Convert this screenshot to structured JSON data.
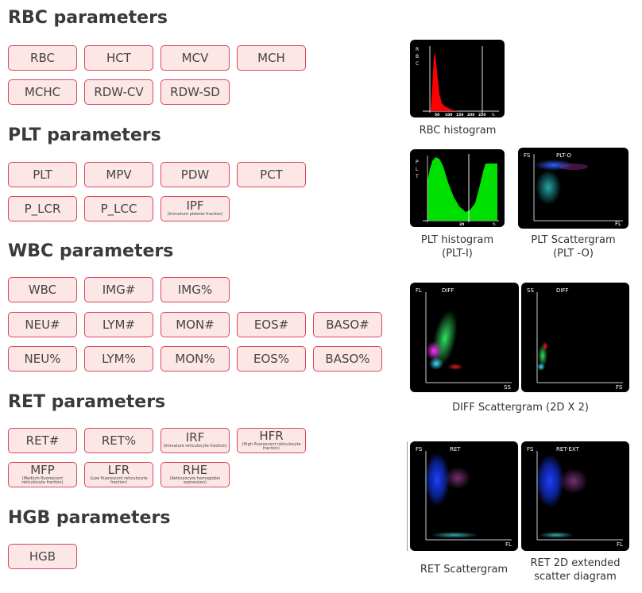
{
  "sections": {
    "rbc": {
      "title": "RBC parameters",
      "items": [
        {
          "name": "RBC"
        },
        {
          "name": "HCT"
        },
        {
          "name": "MCV"
        },
        {
          "name": "MCH"
        },
        {
          "name": "MCHC"
        },
        {
          "name": "RDW-CV"
        },
        {
          "name": "RDW-SD"
        }
      ]
    },
    "plt": {
      "title": "PLT parameters",
      "items": [
        {
          "name": "PLT"
        },
        {
          "name": "MPV"
        },
        {
          "name": "PDW"
        },
        {
          "name": "PCT"
        },
        {
          "name": "P_LCR"
        },
        {
          "name": "P_LCC"
        },
        {
          "name": "IPF",
          "sub": "(Immature platelet fraction)"
        }
      ]
    },
    "wbc": {
      "title": "WBC parameters",
      "items": [
        {
          "name": "WBC"
        },
        {
          "name": "IMG#"
        },
        {
          "name": "IMG%"
        },
        {
          "name": "NEU#"
        },
        {
          "name": "LYM#"
        },
        {
          "name": "MON#"
        },
        {
          "name": "EOS#"
        },
        {
          "name": "BASO#"
        },
        {
          "name": "NEU%"
        },
        {
          "name": "LYM%"
        },
        {
          "name": "MON%"
        },
        {
          "name": "EOS%"
        },
        {
          "name": "BASO%"
        }
      ]
    },
    "ret": {
      "title": "RET parameters",
      "items": [
        {
          "name": "RET#"
        },
        {
          "name": "RET%"
        },
        {
          "name": "IRF",
          "sub": "(Immature reticulocyte fraction)"
        },
        {
          "name": "HFR",
          "sub": "(High fluorescent reticulocyte fraction)"
        },
        {
          "name": "MFP",
          "sub": "(Medium fluorescent reticulocyte fraction)"
        },
        {
          "name": "LFR",
          "sub": "(Low fluorescent reticulocyte fraction)"
        },
        {
          "name": "RHE",
          "sub": "(Reticulocyte hemoglobin expression)"
        }
      ]
    },
    "hgb": {
      "title": "HGB parameters",
      "items": [
        {
          "name": "HGB"
        }
      ]
    }
  },
  "plots": {
    "rbc_hist": {
      "ylabel": "R B C",
      "ticks": [
        "50",
        "100",
        "150",
        "200",
        "250"
      ],
      "unit": "fL",
      "caption": "RBC histogram"
    },
    "plt_hist": {
      "ylabel": "P L T",
      "ticks": [
        "10",
        "20",
        "30"
      ],
      "unit": "fL",
      "caption_l1": "PLT histogram",
      "caption_l2": "(PLT-I)"
    },
    "plt_scatter": {
      "ylabel": "FS",
      "title": "PLT-O",
      "xlabel": "FL",
      "caption_l1": "PLT Scattergram",
      "caption_l2": "(PLT -O)"
    },
    "diff1": {
      "ylabel": "FL",
      "title": "DIFF",
      "xlabel": "SS"
    },
    "diff2": {
      "ylabel": "SS",
      "title": "DIFF",
      "xlabel": "FS"
    },
    "diff_caption": "DIFF Scattergram (2D X 2)",
    "ret1": {
      "ylabel": "FS",
      "title": "RET",
      "xlabel": "FL",
      "caption": "RET Scattergram"
    },
    "ret2": {
      "ylabel": "FS",
      "title": "RET-EXT",
      "xlabel": "FL",
      "caption_l1": "RET 2D extended",
      "caption_l2": "scatter diagram"
    }
  },
  "colors": {
    "button_fill": "#fde6e6",
    "button_border": "#d9475a",
    "rbc_curve": "#ff0000",
    "plt_curve": "#00e000"
  }
}
